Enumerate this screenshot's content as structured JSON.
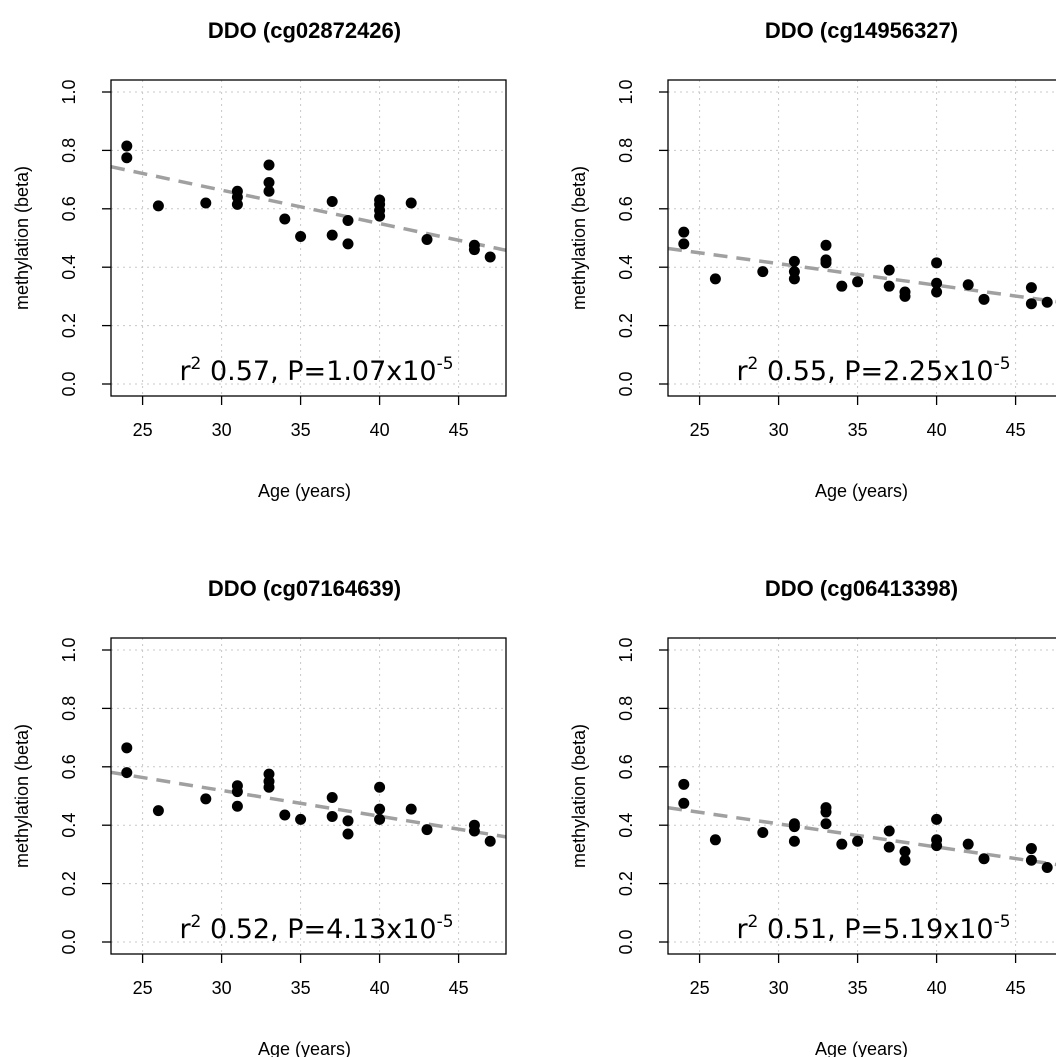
{
  "chart_data": [
    {
      "type": "scatter",
      "title": "DDO (cg02872426)",
      "xlabel": "Age (years)",
      "ylabel": "methylation (beta)",
      "xlim": [
        23,
        48
      ],
      "ylim": [
        0.0,
        1.0
      ],
      "xticks": [
        25,
        30,
        35,
        40,
        45
      ],
      "yticks": [
        0.0,
        0.2,
        0.4,
        0.6,
        0.8,
        1.0
      ],
      "ytick_labels": [
        "0.0",
        "0.2",
        "0.4",
        "0.6",
        "0.8",
        "1.0"
      ],
      "grid": true,
      "annotation": {
        "r_label": "r",
        "r_exp": "2",
        "text": " 0.57, P=1.07x10",
        "p_exp": "-5"
      },
      "fit_line": {
        "x": [
          23,
          48
        ],
        "y": [
          0.744,
          0.458
        ]
      },
      "points": {
        "x": [
          24,
          24,
          26,
          29,
          31,
          31,
          31,
          33,
          33,
          33,
          34,
          35,
          37,
          37,
          38,
          38,
          40,
          40,
          40,
          40,
          42,
          43,
          46,
          46,
          47
        ],
        "y": [
          0.815,
          0.775,
          0.61,
          0.62,
          0.66,
          0.64,
          0.615,
          0.75,
          0.69,
          0.66,
          0.565,
          0.505,
          0.625,
          0.51,
          0.56,
          0.48,
          0.63,
          0.615,
          0.595,
          0.575,
          0.62,
          0.495,
          0.475,
          0.46,
          0.435
        ]
      }
    },
    {
      "type": "scatter",
      "title": "DDO (cg14956327)",
      "xlabel": "Age (years)",
      "ylabel": "methylation (beta)",
      "xlim": [
        23,
        48
      ],
      "ylim": [
        0.0,
        1.0
      ],
      "xticks": [
        25,
        30,
        35,
        40,
        45
      ],
      "yticks": [
        0.0,
        0.2,
        0.4,
        0.6,
        0.8,
        1.0
      ],
      "ytick_labels": [
        "0.0",
        "0.2",
        "0.4",
        "0.6",
        "0.8",
        "1.0"
      ],
      "grid": true,
      "annotation": {
        "r_label": "r",
        "r_exp": "2",
        "text": " 0.55, P=2.25x10",
        "p_exp": "-5"
      },
      "fit_line": {
        "x": [
          23,
          48
        ],
        "y": [
          0.464,
          0.279
        ]
      },
      "points": {
        "x": [
          24,
          24,
          26,
          29,
          31,
          31,
          31,
          33,
          33,
          33,
          34,
          35,
          37,
          37,
          38,
          38,
          40,
          40,
          40,
          42,
          43,
          46,
          46,
          47
        ],
        "y": [
          0.52,
          0.48,
          0.36,
          0.385,
          0.42,
          0.385,
          0.36,
          0.475,
          0.425,
          0.415,
          0.335,
          0.35,
          0.39,
          0.335,
          0.315,
          0.3,
          0.415,
          0.345,
          0.315,
          0.34,
          0.29,
          0.33,
          0.275,
          0.28
        ]
      }
    },
    {
      "type": "scatter",
      "title": "DDO (cg07164639)",
      "xlabel": "Age (years)",
      "ylabel": "methylation (beta)",
      "xlim": [
        23,
        48
      ],
      "ylim": [
        0.0,
        1.0
      ],
      "xticks": [
        25,
        30,
        35,
        40,
        45
      ],
      "yticks": [
        0.0,
        0.2,
        0.4,
        0.6,
        0.8,
        1.0
      ],
      "ytick_labels": [
        "0.0",
        "0.2",
        "0.4",
        "0.6",
        "0.8",
        "1.0"
      ],
      "grid": true,
      "annotation": {
        "r_label": "r",
        "r_exp": "2",
        "text": " 0.52, P=4.13x10",
        "p_exp": "-5"
      },
      "fit_line": {
        "x": [
          23,
          48
        ],
        "y": [
          0.581,
          0.36
        ]
      },
      "points": {
        "x": [
          24,
          24,
          26,
          29,
          31,
          31,
          31,
          33,
          33,
          33,
          34,
          35,
          37,
          37,
          38,
          38,
          40,
          40,
          40,
          42,
          43,
          46,
          46,
          47
        ],
        "y": [
          0.665,
          0.58,
          0.45,
          0.49,
          0.535,
          0.515,
          0.465,
          0.575,
          0.55,
          0.53,
          0.435,
          0.42,
          0.495,
          0.43,
          0.415,
          0.37,
          0.53,
          0.455,
          0.42,
          0.455,
          0.385,
          0.4,
          0.38,
          0.345
        ]
      }
    },
    {
      "type": "scatter",
      "title": "DDO (cg06413398)",
      "xlabel": "Age (years)",
      "ylabel": "methylation (beta)",
      "xlim": [
        23,
        48
      ],
      "ylim": [
        0.0,
        1.0
      ],
      "xticks": [
        25,
        30,
        35,
        40,
        45
      ],
      "yticks": [
        0.0,
        0.2,
        0.4,
        0.6,
        0.8,
        1.0
      ],
      "ytick_labels": [
        "0.0",
        "0.2",
        "0.4",
        "0.6",
        "0.8",
        "1.0"
      ],
      "grid": true,
      "annotation": {
        "r_label": "r",
        "r_exp": "2",
        "text": " 0.51, P=5.19x10",
        "p_exp": "-5"
      },
      "fit_line": {
        "x": [
          23,
          48
        ],
        "y": [
          0.46,
          0.262
        ]
      },
      "points": {
        "x": [
          24,
          24,
          26,
          29,
          31,
          31,
          31,
          33,
          33,
          33,
          34,
          35,
          37,
          37,
          38,
          38,
          40,
          40,
          40,
          42,
          43,
          46,
          46,
          47
        ],
        "y": [
          0.54,
          0.475,
          0.35,
          0.375,
          0.405,
          0.395,
          0.345,
          0.46,
          0.445,
          0.405,
          0.335,
          0.345,
          0.38,
          0.325,
          0.31,
          0.28,
          0.42,
          0.35,
          0.33,
          0.335,
          0.285,
          0.32,
          0.28,
          0.255
        ]
      }
    }
  ],
  "colors": {
    "points": "#000000",
    "fit_line": "#a0a0a0",
    "grid": "#c8c8c8",
    "axis": "#000000"
  }
}
